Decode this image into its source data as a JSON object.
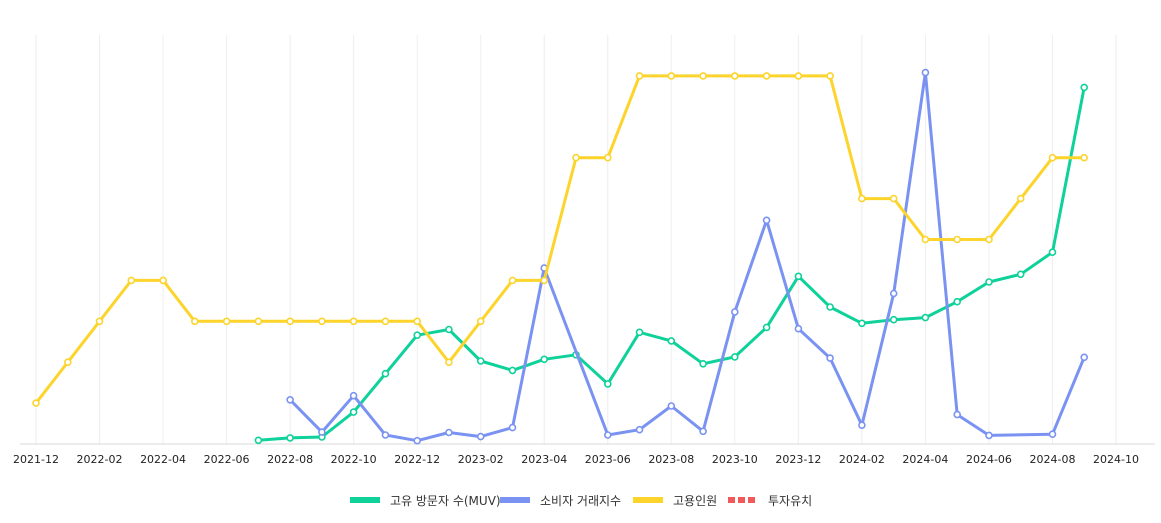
{
  "chart_data": {
    "type": "line",
    "title": "",
    "xlabel": "",
    "ylabel": "",
    "x_ticks": [
      "2021-12",
      "2022-02",
      "2022-04",
      "2022-06",
      "2022-08",
      "2022-10",
      "2022-12",
      "2023-02",
      "2023-04",
      "2023-06",
      "2023-08",
      "2023-10",
      "2023-12",
      "2024-02",
      "2024-04",
      "2024-06",
      "2024-08",
      "2024-10"
    ],
    "ylim": [
      0,
      100
    ],
    "grid": "vertical",
    "legend_position": "bottom",
    "series": [
      {
        "name": "고유 방문자 수(MUV)",
        "color": "#0fd19a",
        "dashed": false,
        "points": [
          {
            "x": "2022-07",
            "y": 0.9
          },
          {
            "x": "2022-08",
            "y": 1.5
          },
          {
            "x": "2022-09",
            "y": 1.7
          },
          {
            "x": "2022-10",
            "y": 7.8
          },
          {
            "x": "2022-11",
            "y": 17.2
          },
          {
            "x": "2022-12",
            "y": 26.6
          },
          {
            "x": "2023-01",
            "y": 28.0
          },
          {
            "x": "2023-02",
            "y": 20.3
          },
          {
            "x": "2023-03",
            "y": 18.0
          },
          {
            "x": "2023-04",
            "y": 20.7
          },
          {
            "x": "2023-05",
            "y": 21.8
          },
          {
            "x": "2023-06",
            "y": 14.7
          },
          {
            "x": "2023-07",
            "y": 27.3
          },
          {
            "x": "2023-08",
            "y": 25.2
          },
          {
            "x": "2023-09",
            "y": 19.6
          },
          {
            "x": "2023-10",
            "y": 21.3
          },
          {
            "x": "2023-11",
            "y": 28.5
          },
          {
            "x": "2023-12",
            "y": 41.0
          },
          {
            "x": "2024-01",
            "y": 33.5
          },
          {
            "x": "2024-02",
            "y": 29.5
          },
          {
            "x": "2024-03",
            "y": 30.4
          },
          {
            "x": "2024-04",
            "y": 30.9
          },
          {
            "x": "2024-05",
            "y": 34.8
          },
          {
            "x": "2024-06",
            "y": 39.6
          },
          {
            "x": "2024-07",
            "y": 41.5
          },
          {
            "x": "2024-08",
            "y": 46.9
          },
          {
            "x": "2024-09",
            "y": 87.2
          }
        ]
      },
      {
        "name": "소비자 거래지수",
        "color": "#7a93f2",
        "dashed": false,
        "points": [
          {
            "x": "2022-08",
            "y": 10.8
          },
          {
            "x": "2022-09",
            "y": 2.9
          },
          {
            "x": "2022-10",
            "y": 11.8
          },
          {
            "x": "2022-11",
            "y": 2.2
          },
          {
            "x": "2022-12",
            "y": 0.8
          },
          {
            "x": "2023-01",
            "y": 2.8
          },
          {
            "x": "2023-02",
            "y": 1.8
          },
          {
            "x": "2023-03",
            "y": 4.0
          },
          {
            "x": "2023-04",
            "y": 43.0
          },
          {
            "x": "2023-06",
            "y": 2.2
          },
          {
            "x": "2023-07",
            "y": 3.5
          },
          {
            "x": "2023-08",
            "y": 9.3
          },
          {
            "x": "2023-09",
            "y": 3.1
          },
          {
            "x": "2023-10",
            "y": 32.3
          },
          {
            "x": "2023-11",
            "y": 54.7
          },
          {
            "x": "2023-12",
            "y": 28.2
          },
          {
            "x": "2024-01",
            "y": 21.0
          },
          {
            "x": "2024-02",
            "y": 4.6
          },
          {
            "x": "2024-03",
            "y": 36.8
          },
          {
            "x": "2024-04",
            "y": 90.8
          },
          {
            "x": "2024-05",
            "y": 7.2
          },
          {
            "x": "2024-06",
            "y": 2.1
          },
          {
            "x": "2024-08",
            "y": 2.4
          },
          {
            "x": "2024-09",
            "y": 21.2
          }
        ]
      },
      {
        "name": "고용인원",
        "color": "#fcd42c",
        "dashed": false,
        "points": [
          {
            "x": "2021-12",
            "y": 10.0
          },
          {
            "x": "2022-01",
            "y": 20.0
          },
          {
            "x": "2022-02",
            "y": 30.0
          },
          {
            "x": "2022-03",
            "y": 40.0
          },
          {
            "x": "2022-04",
            "y": 40.0
          },
          {
            "x": "2022-05",
            "y": 30.0
          },
          {
            "x": "2022-06",
            "y": 30.0
          },
          {
            "x": "2022-07",
            "y": 30.0
          },
          {
            "x": "2022-08",
            "y": 30.0
          },
          {
            "x": "2022-09",
            "y": 30.0
          },
          {
            "x": "2022-10",
            "y": 30.0
          },
          {
            "x": "2022-11",
            "y": 30.0
          },
          {
            "x": "2022-12",
            "y": 30.0
          },
          {
            "x": "2023-01",
            "y": 20.0
          },
          {
            "x": "2023-02",
            "y": 30.0
          },
          {
            "x": "2023-03",
            "y": 40.0
          },
          {
            "x": "2023-04",
            "y": 40.0
          },
          {
            "x": "2023-05",
            "y": 70.0
          },
          {
            "x": "2023-06",
            "y": 70.0
          },
          {
            "x": "2023-07",
            "y": 90.0
          },
          {
            "x": "2023-08",
            "y": 90.0
          },
          {
            "x": "2023-09",
            "y": 90.0
          },
          {
            "x": "2023-10",
            "y": 90.0
          },
          {
            "x": "2023-11",
            "y": 90.0
          },
          {
            "x": "2023-12",
            "y": 90.0
          },
          {
            "x": "2024-01",
            "y": 90.0
          },
          {
            "x": "2024-02",
            "y": 60.0
          },
          {
            "x": "2024-03",
            "y": 60.0
          },
          {
            "x": "2024-04",
            "y": 50.0
          },
          {
            "x": "2024-05",
            "y": 50.0
          },
          {
            "x": "2024-06",
            "y": 50.0
          },
          {
            "x": "2024-07",
            "y": 60.0
          },
          {
            "x": "2024-08",
            "y": 70.0
          },
          {
            "x": "2024-09",
            "y": 70.0
          }
        ]
      },
      {
        "name": "투자유치",
        "color": "#f05a5a",
        "dashed": true,
        "points": []
      }
    ]
  }
}
